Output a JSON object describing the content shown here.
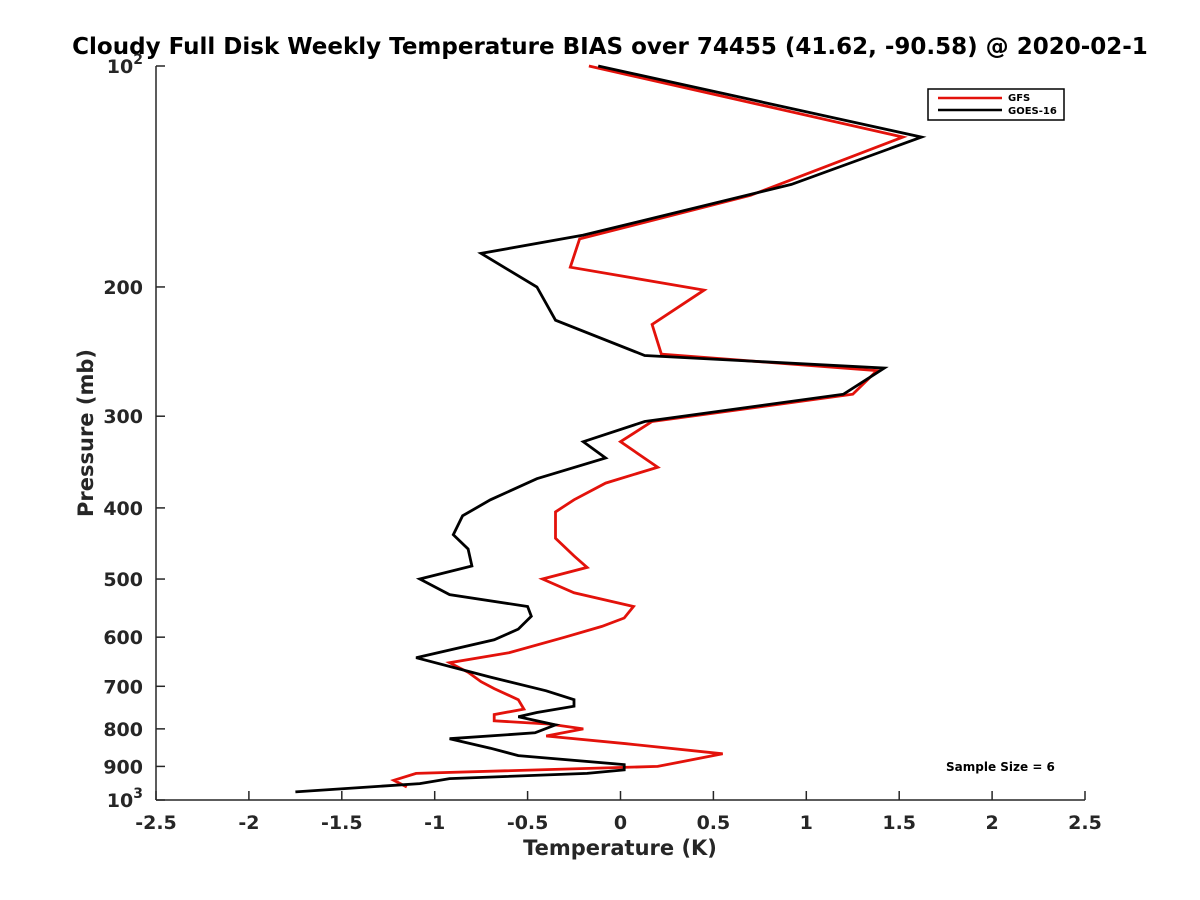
{
  "chart_data": {
    "type": "line",
    "title": "Cloudy Full Disk Weekly Temperature BIAS over 74455 (41.62, -90.58) @ 2020-02-1",
    "xlabel": "Temperature (K)",
    "ylabel": "Pressure (mb)",
    "xlim": [
      -2.5,
      2.5
    ],
    "ylim": [
      100,
      1000
    ],
    "yscale": "log",
    "y_reversed": true,
    "x_ticks": [
      {
        "value": -2.5,
        "label": "-2.5"
      },
      {
        "value": -2,
        "label": "-2"
      },
      {
        "value": -1.5,
        "label": "-1.5"
      },
      {
        "value": -1,
        "label": "-1"
      },
      {
        "value": -0.5,
        "label": "-0.5"
      },
      {
        "value": 0,
        "label": "0"
      },
      {
        "value": 0.5,
        "label": "0.5"
      },
      {
        "value": 1,
        "label": "1"
      },
      {
        "value": 1.5,
        "label": "1.5"
      },
      {
        "value": 2,
        "label": "2"
      },
      {
        "value": 2.5,
        "label": "2.5"
      }
    ],
    "y_ticks": [
      {
        "value": 100,
        "base": "10",
        "exp": "2"
      },
      {
        "value": 200,
        "label": "200"
      },
      {
        "value": 300,
        "label": "300"
      },
      {
        "value": 400,
        "label": "400"
      },
      {
        "value": 500,
        "label": "500"
      },
      {
        "value": 600,
        "label": "600"
      },
      {
        "value": 700,
        "label": "700"
      },
      {
        "value": 800,
        "label": "800"
      },
      {
        "value": 900,
        "label": "900"
      },
      {
        "value": 1000,
        "base": "10",
        "exp": "3"
      }
    ],
    "grid": false,
    "legend_position": "top-right",
    "series": [
      {
        "name": "GFS",
        "color": "#e3120b",
        "points": [
          [
            -0.17,
            100
          ],
          [
            1.52,
            125
          ],
          [
            0.7,
            150
          ],
          [
            -0.22,
            172
          ],
          [
            -0.27,
            188
          ],
          [
            0.45,
            202
          ],
          [
            0.17,
            225
          ],
          [
            0.22,
            247
          ],
          [
            1.38,
            260
          ],
          [
            1.25,
            280
          ],
          [
            0.17,
            305
          ],
          [
            0.0,
            325
          ],
          [
            0.2,
            352
          ],
          [
            -0.08,
            370
          ],
          [
            -0.25,
            390
          ],
          [
            -0.35,
            405
          ],
          [
            -0.35,
            440
          ],
          [
            -0.25,
            465
          ],
          [
            -0.18,
            482
          ],
          [
            -0.42,
            500
          ],
          [
            -0.25,
            522
          ],
          [
            0.07,
            545
          ],
          [
            0.02,
            565
          ],
          [
            -0.1,
            580
          ],
          [
            -0.3,
            600
          ],
          [
            -0.6,
            630
          ],
          [
            -0.92,
            650
          ],
          [
            -0.82,
            670
          ],
          [
            -0.75,
            690
          ],
          [
            -0.68,
            705
          ],
          [
            -0.55,
            730
          ],
          [
            -0.52,
            752
          ],
          [
            -0.68,
            765
          ],
          [
            -0.68,
            780
          ],
          [
            -0.38,
            788
          ],
          [
            -0.2,
            800
          ],
          [
            -0.4,
            818
          ],
          [
            0.03,
            838
          ],
          [
            0.55,
            865
          ],
          [
            0.2,
            900
          ],
          [
            -1.1,
            920
          ],
          [
            -1.22,
            940
          ],
          [
            -1.15,
            960
          ]
        ]
      },
      {
        "name": "GOES-16",
        "color": "#000000",
        "points": [
          [
            -0.12,
            100
          ],
          [
            1.62,
            125
          ],
          [
            0.92,
            145
          ],
          [
            -0.2,
            170
          ],
          [
            -0.75,
            180
          ],
          [
            -0.45,
            200
          ],
          [
            -0.35,
            222
          ],
          [
            0.13,
            248
          ],
          [
            1.42,
            258
          ],
          [
            1.2,
            280
          ],
          [
            0.13,
            305
          ],
          [
            -0.2,
            325
          ],
          [
            -0.08,
            342
          ],
          [
            -0.45,
            365
          ],
          [
            -0.7,
            390
          ],
          [
            -0.85,
            410
          ],
          [
            -0.9,
            435
          ],
          [
            -0.82,
            455
          ],
          [
            -0.8,
            480
          ],
          [
            -1.08,
            500
          ],
          [
            -0.92,
            525
          ],
          [
            -0.5,
            545
          ],
          [
            -0.48,
            562
          ],
          [
            -0.55,
            585
          ],
          [
            -0.68,
            605
          ],
          [
            -1.1,
            640
          ],
          [
            -0.7,
            680
          ],
          [
            -0.4,
            710
          ],
          [
            -0.25,
            730
          ],
          [
            -0.25,
            745
          ],
          [
            -0.45,
            760
          ],
          [
            -0.55,
            770
          ],
          [
            -0.35,
            790
          ],
          [
            -0.46,
            810
          ],
          [
            -0.92,
            825
          ],
          [
            -0.7,
            850
          ],
          [
            -0.55,
            870
          ],
          [
            0.02,
            895
          ],
          [
            0.02,
            910
          ],
          [
            -0.18,
            920
          ],
          [
            -0.92,
            935
          ],
          [
            -1.08,
            950
          ],
          [
            -1.75,
            975
          ]
        ]
      }
    ],
    "annotations": [
      "Sample Size = 6"
    ]
  }
}
